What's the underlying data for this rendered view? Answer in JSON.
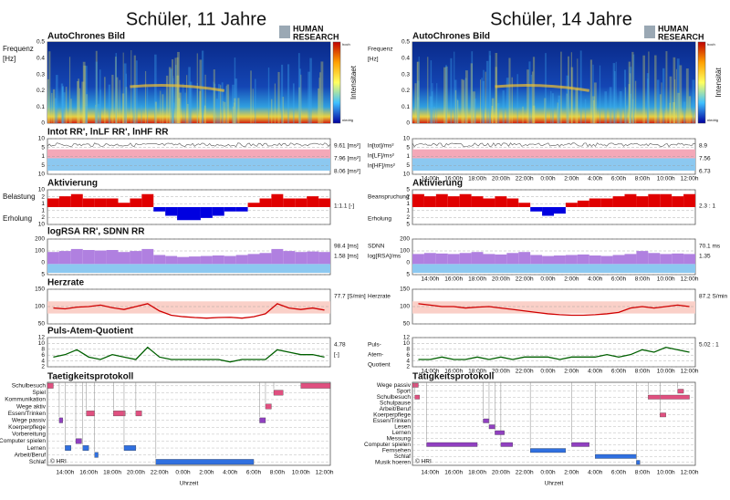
{
  "left": {
    "title": "Schüler, 11 Jahre",
    "logo": [
      "HUMAN",
      "RESEARCH"
    ],
    "xticks": [
      {
        "value": 1.5,
        "label": "14:00h"
      },
      {
        "value": 3.5,
        "label": "16:00h"
      },
      {
        "value": 5.5,
        "label": "18:00h"
      },
      {
        "value": 7.5,
        "label": "20:00h"
      },
      {
        "value": 9.5,
        "label": "22:00h"
      },
      {
        "value": 11.5,
        "label": "0:00h"
      },
      {
        "value": 13.5,
        "label": "2:00h"
      },
      {
        "value": 15.5,
        "label": "4:00h"
      },
      {
        "value": 17.5,
        "label": "6:00h"
      },
      {
        "value": 19.5,
        "label": "8:00h"
      },
      {
        "value": 21.5,
        "label": "10:00h"
      },
      {
        "value": 23.5,
        "label": "12:00h"
      }
    ],
    "xlabel": "Uhrzeit",
    "copyright": "© HRI",
    "panels": [
      {
        "kind": "spectro",
        "label": "AutoChrones Bild",
        "side_labels": [
          {
            "text": "Frequenz",
            "color": "#000"
          },
          {
            "text": "[Hz]",
            "color": "#000"
          }
        ],
        "yticks": [
          "0.5",
          "0.4",
          "0.3",
          "0.2",
          "0.1",
          "0"
        ],
        "colorbar": [
          "hoch",
          "Intensitaet",
          "niedrig"
        ]
      },
      {
        "kind": "intot",
        "label": "Intot RR', lnLF RR', lnHF RR",
        "side_labels": [],
        "yticks": [
          "10",
          "5",
          "1",
          "5",
          "10"
        ],
        "value_texts": [
          {
            "text": "9.61 [ms²]",
            "color": "#000"
          },
          {
            "text": "7.96 [ms²]",
            "color": "#d00000"
          },
          {
            "text": "8.06 [ms²]",
            "color": "#0000c0"
          }
        ]
      },
      {
        "kind": "akt",
        "label": "Aktivierung",
        "side_labels": [
          {
            "text": "Belastung",
            "color": "#d00000"
          },
          {
            "text": "Erholung",
            "color": "#0000c0"
          }
        ],
        "yticks": [
          "10",
          "2",
          "1",
          "1",
          "2",
          "10"
        ],
        "ylim": [
          -4,
          4
        ],
        "values": [
          2,
          2.5,
          3,
          2,
          2,
          2,
          1,
          2,
          3,
          -1,
          -2,
          -3,
          -3,
          -2.5,
          -2,
          -1,
          -1,
          1,
          2,
          3,
          2,
          2,
          2.5,
          2
        ],
        "value_texts": [
          {
            "text": "1:1.1 [-]",
            "color": "#0000c0"
          }
        ]
      },
      {
        "kind": "rsa",
        "label": "logRSA RR', SDNN RR",
        "side_labels": [],
        "yticks": [
          "200",
          "100",
          "0",
          "5"
        ],
        "ylim": [
          0,
          250
        ],
        "values": [
          120,
          130,
          150,
          140,
          135,
          140,
          120,
          130,
          150,
          90,
          80,
          70,
          75,
          80,
          85,
          80,
          90,
          100,
          110,
          150,
          130,
          120,
          125,
          120
        ],
        "value_texts": [
          {
            "text": "98.4 [ms]",
            "color": "#8000c0"
          },
          {
            "text": "1.58 [ms]",
            "color": "#0000c0"
          }
        ]
      },
      {
        "kind": "hr",
        "label": "Herzrate",
        "side_labels": [],
        "yticks": [
          "150",
          "100",
          "50"
        ],
        "ylim": [
          40,
          160
        ],
        "values": [
          95,
          92,
          98,
          100,
          105,
          96,
          90,
          100,
          110,
          85,
          70,
          65,
          62,
          60,
          62,
          63,
          60,
          65,
          75,
          110,
          95,
          90,
          95,
          88
        ],
        "value_texts": [
          {
            "text": "77.7 [S/min]",
            "color": "#d00000"
          }
        ]
      },
      {
        "kind": "paq",
        "label": "Puls-Atem-Quotient",
        "side_labels": [],
        "yticks": [
          "12",
          "10",
          "8",
          "6",
          "4",
          "2"
        ],
        "ylim": [
          1,
          13
        ],
        "values": [
          5,
          6,
          8,
          5,
          4,
          6,
          5,
          4,
          9,
          5,
          4,
          4,
          4,
          4,
          4,
          3,
          4,
          4,
          4,
          8,
          7,
          6,
          6,
          5
        ],
        "value_texts": [
          {
            "text": "4.78",
            "color": "#006000"
          },
          {
            "text": "[-]",
            "color": "#006000"
          }
        ]
      },
      {
        "kind": "protocol",
        "label": "Taetigkeitsprotokoll",
        "categories": [
          "Schulbesuch",
          "Spiel",
          "Kommunikation",
          "Wege aktiv",
          "Essen/Trinken",
          "Wege passiv",
          "Koerperpflege",
          "Vorbereitung",
          "Computer spielen",
          "Lernen",
          "Arbeit/Beruf",
          "Schlaf"
        ],
        "blocks": [
          [
            0,
            0,
            0.5
          ],
          [
            0,
            21.5,
            24
          ],
          [
            4,
            3.3,
            4
          ],
          [
            4,
            5.6,
            6.6
          ],
          [
            4,
            7.5,
            8
          ],
          [
            5,
            1,
            1.3
          ],
          [
            9,
            1.5,
            2
          ],
          [
            9,
            3,
            3.5
          ],
          [
            8,
            2.4,
            2.9
          ],
          [
            9,
            6.5,
            7.5
          ],
          [
            10,
            4,
            4.3
          ],
          [
            11,
            9.2,
            17.5
          ],
          [
            5,
            18,
            18.5
          ],
          [
            3,
            18.5,
            19
          ],
          [
            1,
            19.2,
            20
          ]
        ]
      }
    ]
  },
  "right": {
    "title": "Schüler, 14 Jahre",
    "logo": [
      "HUMAN",
      "RESEARCH"
    ],
    "xticks": [
      {
        "value": 1.5,
        "label": "14:00h"
      },
      {
        "value": 3.5,
        "label": "16:00h"
      },
      {
        "value": 5.5,
        "label": "18:00h"
      },
      {
        "value": 7.5,
        "label": "20:00h"
      },
      {
        "value": 9.5,
        "label": "22:00h"
      },
      {
        "value": 11.5,
        "label": "0:00h"
      },
      {
        "value": 13.5,
        "label": "2:00h"
      },
      {
        "value": 15.5,
        "label": "4:00h"
      },
      {
        "value": 17.5,
        "label": "6:00h"
      },
      {
        "value": 19.5,
        "label": "8:00h"
      },
      {
        "value": 21.5,
        "label": "10:00h"
      },
      {
        "value": 23.5,
        "label": "12:00h"
      }
    ],
    "xlabel": "Uhrzeit",
    "copyright": "© HRI",
    "panels": [
      {
        "kind": "spectro",
        "label": "AutoChrones Bild",
        "side_labels": [
          {
            "text": "Frequenz",
            "color": "#000"
          },
          {
            "text": "[Hz]",
            "color": "#000"
          }
        ],
        "yticks": [
          "0.5",
          "0.4",
          "0.3",
          "0.2",
          "0.1",
          "0"
        ],
        "colorbar": [
          "hoch",
          "Intensität",
          "niedrig"
        ]
      },
      {
        "kind": "intot",
        "label": "",
        "side_labels": [
          {
            "text": "ln[tot]/ms²",
            "color": "#000"
          },
          {
            "text": "ln[LF]/ms²",
            "color": "#d00000"
          },
          {
            "text": "ln[HF]/ms²",
            "color": "#0000c0"
          }
        ],
        "yticks": [
          "10",
          "5",
          "1",
          "5",
          "10"
        ],
        "value_texts": [
          {
            "text": "8.9",
            "color": "#000"
          },
          {
            "text": "7.56",
            "color": "#d00000"
          },
          {
            "text": "6.73",
            "color": "#0000c0"
          }
        ],
        "time_axis": true
      },
      {
        "kind": "akt",
        "label": "Aktivierung",
        "side_labels": [
          {
            "text": "Beanspruchung",
            "color": "#d00000"
          },
          {
            "text": "Erholung",
            "color": "#0000c0"
          }
        ],
        "yticks": [
          "5",
          "2",
          "1",
          "1",
          "2",
          "5"
        ],
        "ylim": [
          -4,
          4
        ],
        "values": [
          3,
          2.5,
          3,
          2.5,
          3,
          2.5,
          2,
          2.5,
          2,
          1,
          -1,
          -2,
          -1.5,
          1,
          1.5,
          2,
          2,
          2.5,
          3,
          2.5,
          3,
          3,
          2.5,
          3
        ],
        "value_texts": [
          {
            "text": "2.3 : 1",
            "color": "#d00000"
          }
        ]
      },
      {
        "kind": "rsa",
        "label": "",
        "side_labels": [
          {
            "text": "SDNN",
            "color": "#8000c0"
          },
          {
            "text": "log[RSA]/ms",
            "color": "#0000c0"
          }
        ],
        "yticks": [
          "200",
          "100",
          "0",
          "5"
        ],
        "ylim": [
          0,
          250
        ],
        "values": [
          100,
          110,
          105,
          100,
          110,
          120,
          100,
          95,
          110,
          120,
          90,
          80,
          85,
          90,
          95,
          85,
          80,
          90,
          100,
          130,
          110,
          100,
          105,
          100
        ],
        "value_texts": [
          {
            "text": "70.1 ms",
            "color": "#8000c0"
          },
          {
            "text": "1.35",
            "color": "#0000c0"
          }
        ],
        "time_axis": true
      },
      {
        "kind": "hr",
        "label": "",
        "side_labels": [
          {
            "text": "Herzrate",
            "color": "#d00000"
          }
        ],
        "yticks": [
          "150",
          "100",
          "50"
        ],
        "ylim": [
          40,
          160
        ],
        "values": [
          110,
          105,
          100,
          100,
          95,
          98,
          100,
          95,
          90,
          85,
          80,
          75,
          72,
          70,
          70,
          72,
          75,
          80,
          95,
          100,
          95,
          100,
          105,
          100
        ],
        "value_texts": [
          {
            "text": "87.2 S/min",
            "color": "#d00000"
          }
        ]
      },
      {
        "kind": "paq",
        "label": "",
        "side_labels": [
          {
            "text": "Puls-",
            "color": "#006000"
          },
          {
            "text": "Atem-",
            "color": "#006000"
          },
          {
            "text": "Quotient",
            "color": "#006000"
          }
        ],
        "yticks": [
          "12",
          "10",
          "8",
          "6",
          "4",
          "2"
        ],
        "ylim": [
          1,
          13
        ],
        "values": [
          4,
          4,
          5,
          4,
          4,
          5,
          4,
          5,
          4,
          5,
          5,
          5,
          4,
          5,
          5,
          5,
          6,
          5,
          6,
          8,
          7,
          9,
          8,
          7
        ],
        "value_texts": [
          {
            "text": "5.02 : 1",
            "color": "#006000"
          }
        ],
        "time_axis": true
      },
      {
        "kind": "protocol",
        "label": "Tätigkeitsprotokoll",
        "categories": [
          "Wege passiv",
          "Sport",
          "Schulbesuch",
          "Schulpause",
          "Arbeit/Beruf",
          "Koerperpflege",
          "Essen/Trinken",
          "Lesen",
          "Lernen",
          "Messung",
          "Computer spielen",
          "Fernsehen",
          "Schlaf",
          "Musik hoeren"
        ],
        "blocks": [
          [
            0,
            0,
            0.5
          ],
          [
            2,
            0.2,
            0.6
          ],
          [
            10,
            1.2,
            5.5
          ],
          [
            10,
            7.5,
            8.5
          ],
          [
            11,
            10,
            13
          ],
          [
            10,
            13.5,
            15
          ],
          [
            12,
            15.5,
            19
          ],
          [
            2,
            20,
            23.5
          ],
          [
            1,
            22.5,
            23
          ],
          [
            6,
            6,
            6.5
          ],
          [
            8,
            7,
            7.8
          ],
          [
            7,
            6.5,
            7
          ],
          [
            13,
            19,
            19.3
          ],
          [
            5,
            21,
            21.5
          ]
        ]
      }
    ]
  }
}
